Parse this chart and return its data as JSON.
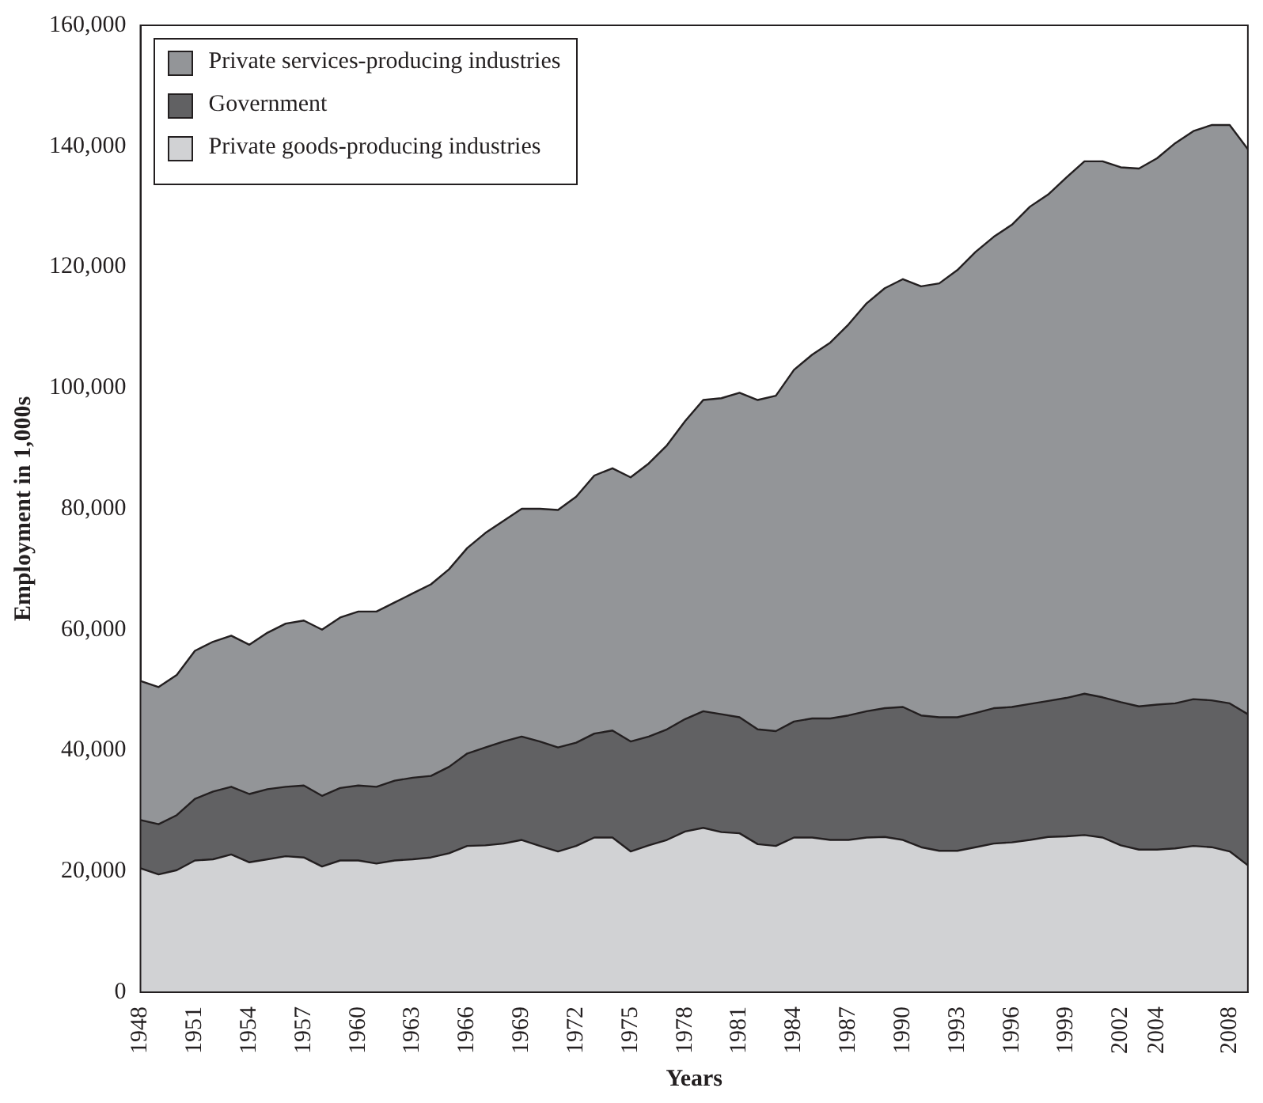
{
  "chart_data": {
    "type": "area",
    "stacked": true,
    "xlabel": "Years",
    "ylabel": "Employment in 1,000s",
    "x": [
      1948,
      1949,
      1950,
      1951,
      1952,
      1953,
      1954,
      1955,
      1956,
      1957,
      1958,
      1959,
      1960,
      1961,
      1962,
      1963,
      1964,
      1965,
      1966,
      1967,
      1968,
      1969,
      1970,
      1971,
      1972,
      1973,
      1974,
      1975,
      1976,
      1977,
      1978,
      1979,
      1980,
      1981,
      1982,
      1983,
      1984,
      1985,
      1986,
      1987,
      1988,
      1989,
      1990,
      1991,
      1992,
      1993,
      1994,
      1995,
      1996,
      1997,
      1998,
      1999,
      2000,
      2001,
      2002,
      2003,
      2004,
      2005,
      2006,
      2007,
      2008,
      2009
    ],
    "series": [
      {
        "name": "Private goods-producing industries",
        "color": "#d1d2d4",
        "values": [
          20500,
          19500,
          20200,
          21800,
          22000,
          22800,
          21500,
          22000,
          22500,
          22300,
          20800,
          21800,
          21800,
          21300,
          21800,
          22000,
          22300,
          23000,
          24200,
          24300,
          24600,
          25200,
          24200,
          23300,
          24200,
          25600,
          25600,
          23300,
          24300,
          25200,
          26600,
          27200,
          26500,
          26300,
          24500,
          24200,
          25600,
          25600,
          25200,
          25200,
          25600,
          25700,
          25200,
          24000,
          23400,
          23400,
          24000,
          24600,
          24800,
          25200,
          25700,
          25800,
          26000,
          25600,
          24300,
          23600,
          23600,
          23800,
          24200,
          24000,
          23300,
          21000
        ]
      },
      {
        "name": "Government",
        "color": "#616163",
        "values": [
          8000,
          8300,
          9100,
          10200,
          11200,
          11200,
          11300,
          11600,
          11500,
          11900,
          11700,
          12000,
          12400,
          12700,
          13200,
          13500,
          13500,
          14300,
          15300,
          16200,
          16900,
          17100,
          17300,
          17200,
          17100,
          17200,
          17700,
          18200,
          18000,
          18300,
          18600,
          19300,
          19500,
          19200,
          19000,
          19000,
          19200,
          19700,
          20100,
          20600,
          20900,
          21300,
          22000,
          21800,
          22100,
          22100,
          22200,
          22400,
          22400,
          22500,
          22500,
          22900,
          23400,
          23200,
          23700,
          23700,
          24000,
          24000,
          24300,
          24300,
          24500,
          25000
        ]
      },
      {
        "name": "Private services-producing industries",
        "color": "#939598",
        "values": [
          23000,
          22700,
          23200,
          24500,
          24800,
          25000,
          24700,
          25900,
          27000,
          27300,
          27500,
          28200,
          28800,
          29000,
          29500,
          30500,
          31700,
          32700,
          34000,
          35500,
          36500,
          37700,
          38500,
          39300,
          40700,
          42700,
          43400,
          43700,
          45200,
          47000,
          49300,
          51500,
          52300,
          53700,
          54500,
          55500,
          58200,
          60200,
          62200,
          64700,
          67500,
          69500,
          70800,
          71000,
          71800,
          74000,
          76300,
          78000,
          79800,
          82300,
          83800,
          86100,
          88100,
          88700,
          88500,
          89000,
          90400,
          92700,
          94000,
          95200,
          95700,
          93500
        ]
      }
    ],
    "xlim": [
      1948,
      2009
    ],
    "xticks": [
      1948,
      1951,
      1954,
      1957,
      1960,
      1963,
      1966,
      1969,
      1972,
      1975,
      1978,
      1981,
      1984,
      1987,
      1990,
      1993,
      1996,
      1999,
      2002,
      2004,
      2008
    ],
    "ylim": [
      0,
      160000
    ],
    "yticks": [
      0,
      {
        "value": 20000,
        "label": "20,000"
      },
      {
        "value": 40000,
        "label": "40,000"
      },
      {
        "value": 60000,
        "label": "60,000"
      },
      {
        "value": 80000,
        "label": "80,000"
      },
      {
        "value": 100000,
        "label": "100,000"
      },
      {
        "value": 120000,
        "label": "120,000"
      },
      {
        "value": 140000,
        "label": "140,000"
      },
      {
        "value": 160000,
        "label": "160,000"
      }
    ],
    "grid": false,
    "legend": "top left",
    "marker": "none",
    "line_style": "solid"
  }
}
